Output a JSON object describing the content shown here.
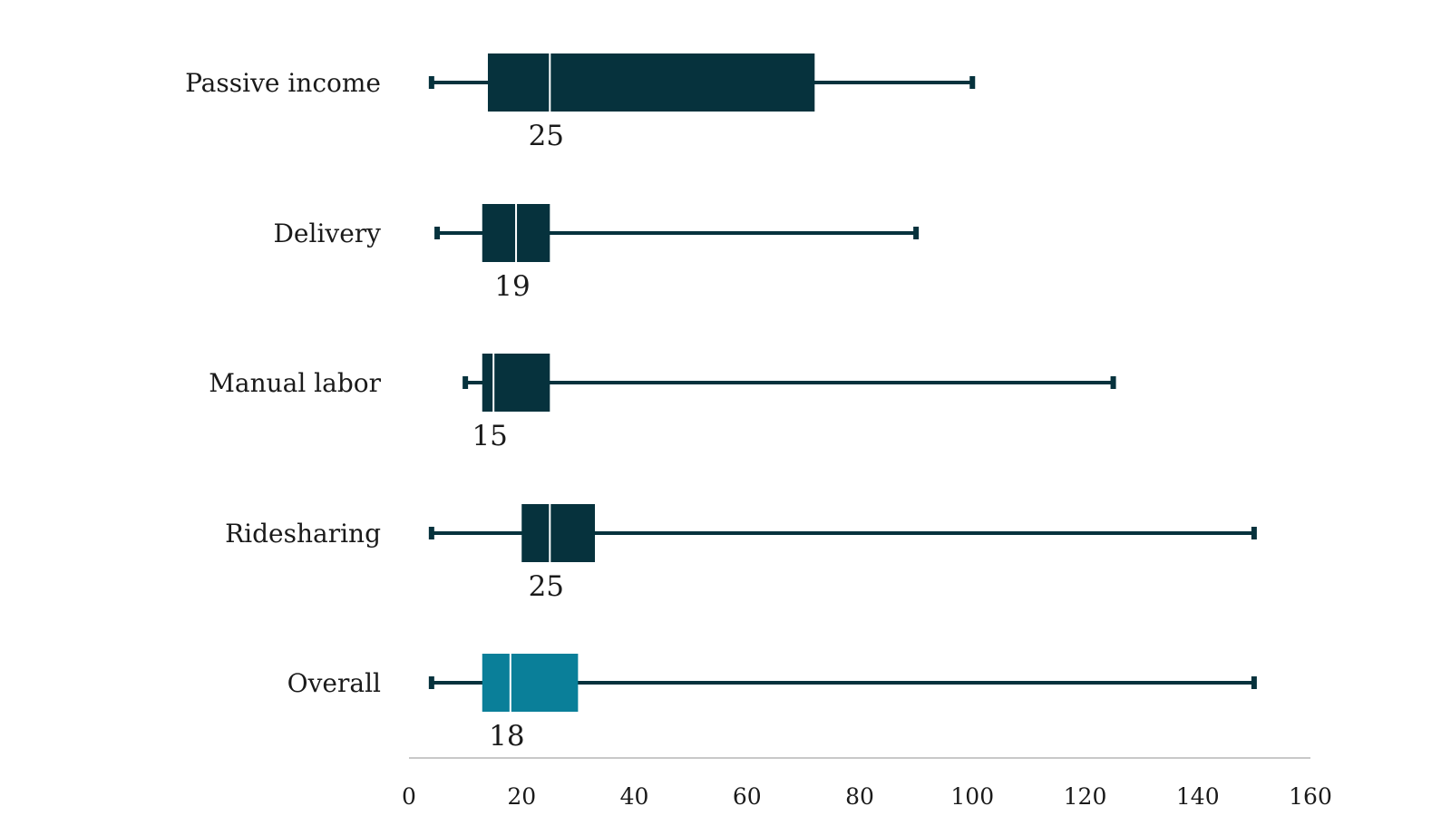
{
  "chart_data": {
    "type": "boxplot",
    "orientation": "horizontal",
    "title": "",
    "xlabel": "",
    "ylabel": "",
    "xlim": [
      0,
      160
    ],
    "x_ticks": [
      0,
      20,
      40,
      60,
      80,
      100,
      120,
      140,
      160
    ],
    "grid": false,
    "categories": [
      "Passive income",
      "Delivery",
      "Manual labor",
      "Ridesharing",
      "Overall"
    ],
    "series": [
      {
        "category": "Passive income",
        "min": 4,
        "q1": 14,
        "median": 25,
        "q3": 72,
        "max": 100,
        "median_label": "25",
        "color": "#06323d"
      },
      {
        "category": "Delivery",
        "min": 5,
        "q1": 13,
        "median": 19,
        "q3": 25,
        "max": 90,
        "median_label": "19",
        "color": "#06323d"
      },
      {
        "category": "Manual labor",
        "min": 10,
        "q1": 13,
        "median": 15,
        "q3": 25,
        "max": 125,
        "median_label": "15",
        "color": "#06323d"
      },
      {
        "category": "Ridesharing",
        "min": 4,
        "q1": 20,
        "median": 25,
        "q3": 33,
        "max": 150,
        "median_label": "25",
        "color": "#06323d"
      },
      {
        "category": "Overall",
        "min": 4,
        "q1": 13,
        "median": 18,
        "q3": 30,
        "max": 150,
        "median_label": "18",
        "color": "#0a7f99"
      }
    ],
    "colors": {
      "box": "#06323d",
      "highlight": "#0a7f99",
      "median_line": "#ffffff",
      "axis": "#c8c8c8"
    }
  }
}
